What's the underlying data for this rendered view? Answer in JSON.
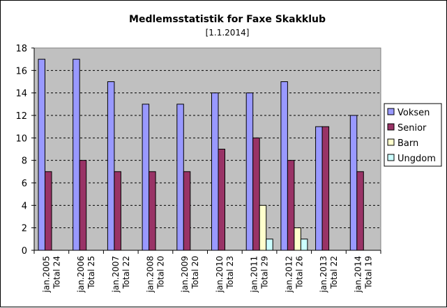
{
  "chart_data": {
    "type": "bar",
    "title": "Medlemsstatistik for Faxe Skakklub",
    "subtitle": "[1.1.2014]",
    "categories": [
      [
        "jan.2005",
        "Total 24"
      ],
      [
        "jan.2006",
        "Total 25"
      ],
      [
        "jan.2007",
        "Total 22"
      ],
      [
        "jan.2008",
        "Total 20"
      ],
      [
        "jan.2009",
        "Total 20"
      ],
      [
        "jan.2010",
        "Total 23"
      ],
      [
        "jan.2011",
        "Total 29"
      ],
      [
        "jan.2012",
        "Total 26"
      ],
      [
        "jan.2013",
        "Total 22"
      ],
      [
        "jan.2014",
        "Total 19"
      ]
    ],
    "series": [
      {
        "name": "Voksen",
        "color": "#9999ff",
        "values": [
          17,
          17,
          15,
          13,
          13,
          14,
          14,
          15,
          11,
          12
        ]
      },
      {
        "name": "Senior",
        "color": "#993366",
        "values": [
          7,
          8,
          7,
          7,
          7,
          9,
          10,
          8,
          11,
          7
        ]
      },
      {
        "name": "Barn",
        "color": "#ffffcc",
        "values": [
          0,
          0,
          0,
          0,
          0,
          0,
          4,
          2,
          0,
          0
        ]
      },
      {
        "name": "Ungdom",
        "color": "#ccffff",
        "values": [
          0,
          0,
          0,
          0,
          0,
          0,
          1,
          1,
          0,
          0
        ]
      }
    ],
    "ylim": [
      0,
      18
    ],
    "yticks": [
      0,
      2,
      4,
      6,
      8,
      10,
      12,
      14,
      16,
      18
    ],
    "plot_background": "#c0c0c0",
    "grid": "dashed horizontal",
    "legend_position": "right",
    "xlabel": "",
    "ylabel": ""
  }
}
